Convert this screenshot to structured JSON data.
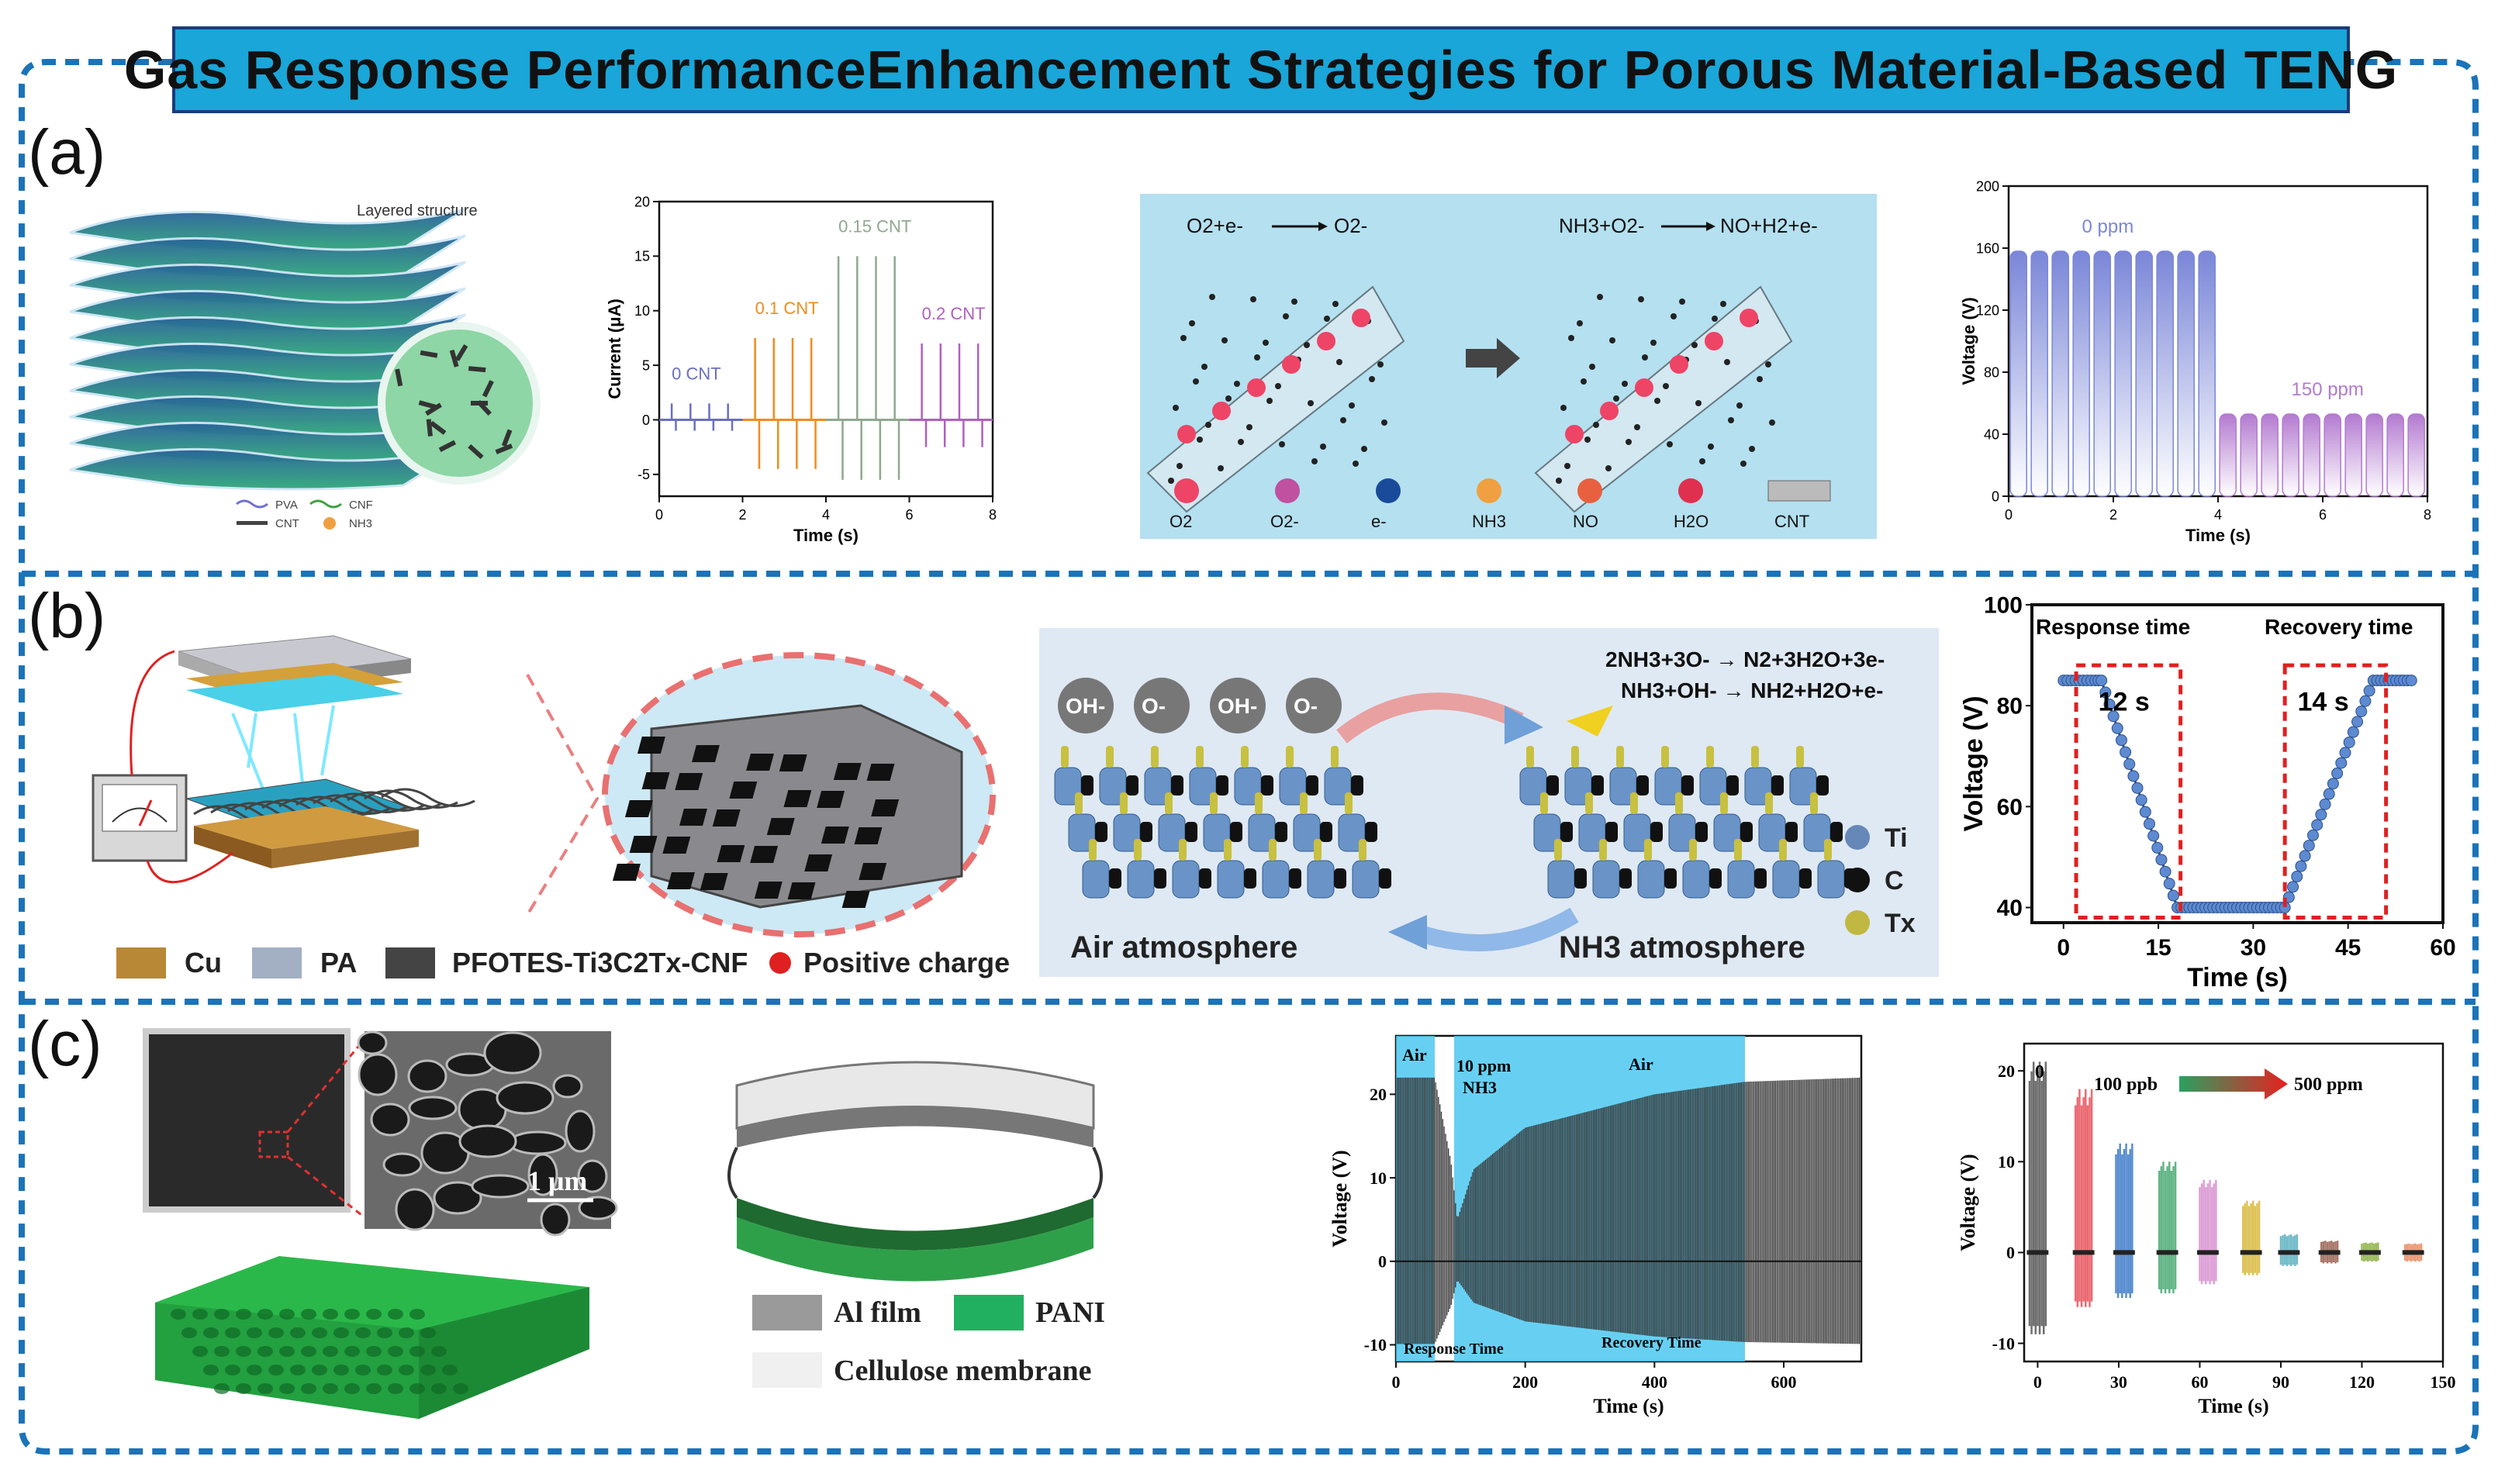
{
  "title": "Gas Response PerformanceEnhancement Strategies for Porous Material-Based TENG",
  "colors": {
    "title_bg": "#1aa6d8",
    "border": "#1b73b8",
    "accent_red": "#e02020"
  },
  "panels": {
    "a": {
      "label": "(a)",
      "layered": {
        "caption": "Layered structure",
        "legend": [
          "PVA",
          "CNF",
          "CNT",
          "NH3"
        ]
      },
      "mechanism": {
        "eq1_lhs": "O2+e-",
        "eq1_rhs": "O2-",
        "eq2_lhs": "NH3+O2-",
        "eq2_rhs": "NO+H2+e-",
        "legend": [
          "O2",
          "O2-",
          "e-",
          "NH3",
          "NO",
          "H2O",
          "CNT"
        ]
      }
    },
    "b": {
      "label": "(b)",
      "legend": [
        "Cu",
        "PA",
        "PFOTES-Ti3C2Tx-CNF",
        "Positive charge"
      ],
      "mechanism": {
        "ions": [
          "OH-",
          "O-",
          "OH-",
          "O-"
        ],
        "eq1": "2NH3+3O- → N2+3H2O+3e-",
        "eq2": "NH3+OH- → NH2+H2O+e-",
        "left_caption": "Air atmosphere",
        "right_caption": "NH3 atmosphere",
        "legend": [
          "Ti",
          "C",
          "Tx"
        ]
      }
    },
    "c": {
      "label": "(c)",
      "scale_bar": "1 μm",
      "legend": [
        "Al film",
        "PANI",
        "Cellulose membrane"
      ]
    }
  },
  "chart_data": [
    {
      "id": "a-current",
      "type": "line",
      "xlabel": "Time (s)",
      "ylabel": "Current (μA)",
      "xlim": [
        0,
        8
      ],
      "ylim": [
        -7,
        20
      ],
      "xticks": [
        0,
        2,
        4,
        6,
        8
      ],
      "yticks": [
        -5,
        0,
        5,
        10,
        15,
        20
      ],
      "series": [
        {
          "name": "0 CNT",
          "color": "#6a6fc0",
          "x_range": [
            0,
            2
          ],
          "peak_pos": 1.5,
          "peak_neg": -1.0
        },
        {
          "name": "0.1 CNT",
          "color": "#f08c1c",
          "x_range": [
            2,
            4
          ],
          "peak_pos": 7.5,
          "peak_neg": -4.5
        },
        {
          "name": "0.15 CNT",
          "color": "#8fa88f",
          "x_range": [
            4,
            6
          ],
          "peak_pos": 15.0,
          "peak_neg": -5.5
        },
        {
          "name": "0.2 CNT",
          "color": "#b05fc0",
          "x_range": [
            6,
            8
          ],
          "peak_pos": 7.0,
          "peak_neg": -2.5
        }
      ]
    },
    {
      "id": "a-voltage",
      "type": "area",
      "xlabel": "Time (s)",
      "ylabel": "Voltage (V)",
      "xlim": [
        0,
        8
      ],
      "ylim": [
        0,
        200
      ],
      "xticks": [
        0,
        2,
        4,
        6,
        8
      ],
      "yticks": [
        0,
        40,
        80,
        120,
        160,
        200
      ],
      "series": [
        {
          "name": "0 ppm",
          "color": "#7a86d8",
          "x_range": [
            0,
            4
          ],
          "peak": 158,
          "count": 10
        },
        {
          "name": "150 ppm",
          "color": "#b37ad0",
          "x_range": [
            4,
            8
          ],
          "peak": 53,
          "count": 10
        }
      ]
    },
    {
      "id": "b-voltage",
      "type": "line",
      "xlabel": "Time (s)",
      "ylabel": "Voltage (V)",
      "xlim": [
        -5,
        60
      ],
      "ylim": [
        37,
        100
      ],
      "xticks": [
        0,
        15,
        30,
        45,
        60
      ],
      "yticks": [
        40,
        60,
        80,
        100
      ],
      "annotations": [
        {
          "text": "Response time"
        },
        {
          "text": "Recovery time"
        },
        {
          "text": "12 s"
        },
        {
          "text": "14 s"
        }
      ],
      "x": [
        0,
        5,
        6,
        18,
        35,
        49,
        55
      ],
      "y": [
        85,
        85,
        85,
        40,
        40,
        85,
        85
      ]
    },
    {
      "id": "c-voltage-time",
      "type": "line",
      "xlabel": "Time (s)",
      "ylabel": "Voltage (V)",
      "xlim": [
        0,
        720
      ],
      "ylim": [
        -12,
        27
      ],
      "xticks": [
        0,
        200,
        400,
        600
      ],
      "yticks": [
        -10,
        0,
        10,
        20
      ],
      "annotations": [
        {
          "text": "Air"
        },
        {
          "text": "10 ppm"
        },
        {
          "text": "NH3"
        },
        {
          "text": "Air"
        },
        {
          "text": "Response Time"
        },
        {
          "text": "Recovery Time"
        }
      ],
      "shaded_x": [
        90,
        540
      ],
      "envelope_x": [
        0,
        60,
        85,
        95,
        120,
        200,
        300,
        400,
        540,
        720
      ],
      "envelope_y": [
        22,
        22,
        12,
        5,
        11,
        16,
        18,
        20,
        21.5,
        22
      ]
    },
    {
      "id": "c-voltage-conc",
      "type": "bar",
      "xlabel": "Time (s)",
      "ylabel": "Voltage (V)",
      "xlim": [
        -5,
        150
      ],
      "ylim": [
        -12,
        23
      ],
      "xticks": [
        0,
        30,
        60,
        90,
        120,
        150
      ],
      "yticks": [
        -10,
        0,
        10,
        20
      ],
      "annotations": [
        {
          "text": "0"
        },
        {
          "text": "100 ppb"
        },
        {
          "text": "500 ppm"
        }
      ],
      "groups": [
        {
          "x": 0,
          "pos": 21,
          "neg": -9,
          "color": "#555555"
        },
        {
          "x": 17,
          "pos": 18,
          "neg": -6,
          "color": "#e8505a"
        },
        {
          "x": 32,
          "pos": 12,
          "neg": -5,
          "color": "#3a78c8"
        },
        {
          "x": 48,
          "pos": 10,
          "neg": -4.5,
          "color": "#45a870"
        },
        {
          "x": 63,
          "pos": 8,
          "neg": -3.5,
          "color": "#d890d0"
        },
        {
          "x": 79,
          "pos": 5.7,
          "neg": -2.5,
          "color": "#d8b83a"
        },
        {
          "x": 93,
          "pos": 2,
          "neg": -1.5,
          "color": "#5ab0c0"
        },
        {
          "x": 108,
          "pos": 1.3,
          "neg": -1.2,
          "color": "#9a6050"
        },
        {
          "x": 123,
          "pos": 1.1,
          "neg": -1.0,
          "color": "#8ab040"
        },
        {
          "x": 139,
          "pos": 1.0,
          "neg": -1.0,
          "color": "#e88a60"
        }
      ]
    }
  ]
}
